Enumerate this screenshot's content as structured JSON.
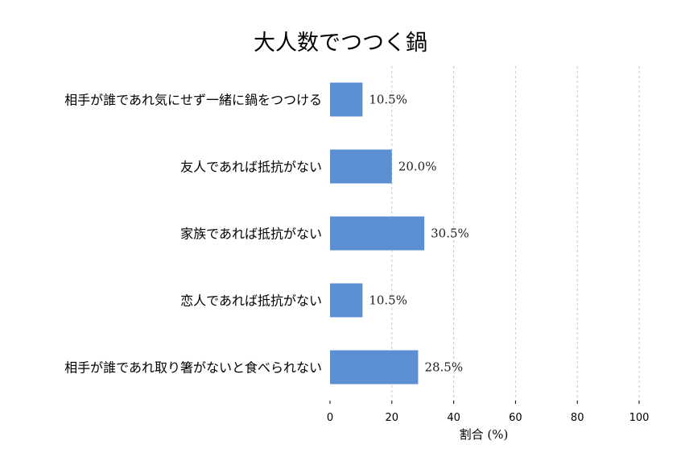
{
  "chart_data": {
    "type": "bar",
    "orientation": "horizontal",
    "title": "大人数でつつく鍋",
    "xlabel": "割合 (%)",
    "ylabel": "",
    "xlim": [
      0,
      100
    ],
    "xticks": [
      0,
      20,
      40,
      60,
      80,
      100
    ],
    "grid": true,
    "categories": [
      "相手が誰であれ気にせず一緒に鍋をつつける",
      "友人であれば抵抗がない",
      "家族であれば抵抗がない",
      "恋人であれば抵抗がない",
      "相手が誰であれ取り箸がないと食べられない"
    ],
    "values": [
      10.5,
      20.0,
      30.5,
      10.5,
      28.5
    ],
    "value_labels": [
      "10.5%",
      "20.0%",
      "30.5%",
      "10.5%",
      "28.5%"
    ],
    "bar_color": "#5b8fd1"
  }
}
